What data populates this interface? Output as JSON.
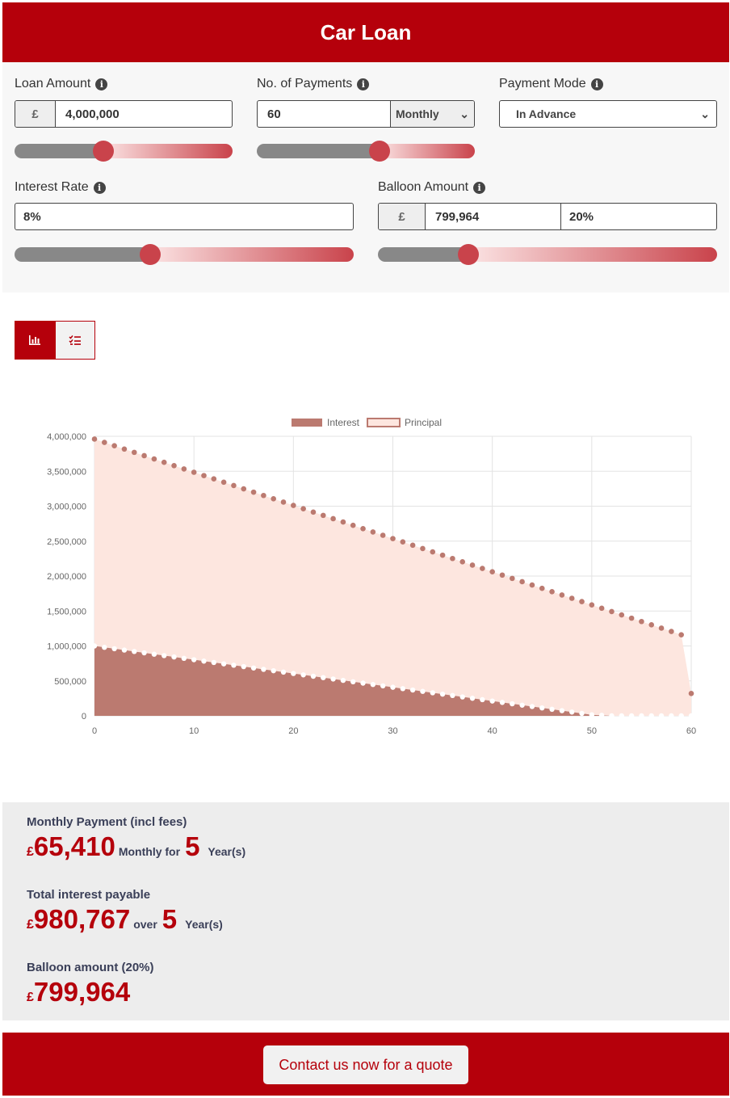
{
  "header": {
    "title": "Car Loan"
  },
  "form": {
    "loan_amount": {
      "label": "Loan Amount",
      "currency": "£",
      "value": "4,000,000",
      "slider_fraction": 0.41
    },
    "payments": {
      "label": "No. of Payments",
      "value": "60",
      "frequency": "Monthly",
      "slider_fraction": 0.56
    },
    "payment_mode": {
      "label": "Payment Mode",
      "value": "In Advance"
    },
    "interest_rate": {
      "label": "Interest Rate",
      "value": "8%",
      "slider_fraction": 0.4
    },
    "balloon": {
      "label": "Balloon Amount",
      "currency": "£",
      "value": "799,964",
      "percent": "20%",
      "slider_fraction": 0.27
    }
  },
  "view_toggle": {
    "chart_icon": "bar-chart-icon",
    "table_icon": "list-check-icon"
  },
  "chart_data": {
    "type": "line",
    "legend": [
      "Interest",
      "Principal"
    ],
    "legend_placement": "top",
    "x_ticks": [
      "0",
      "10",
      "20",
      "30",
      "40",
      "50",
      "60"
    ],
    "y_ticks": [
      "0",
      "500,000",
      "1,000,000",
      "1,500,000",
      "2,000,000",
      "2,500,000",
      "3,000,000",
      "3,500,000",
      "4,000,000"
    ],
    "xlim": [
      0,
      60
    ],
    "ylim": [
      0,
      4000000
    ],
    "grid": true,
    "series": [
      {
        "name": "Principal",
        "x": [
          0,
          59,
          60
        ],
        "y": [
          3960000,
          1160000,
          320000
        ]
      },
      {
        "name": "Interest",
        "x": [
          0,
          50,
          52,
          60
        ],
        "y": [
          1000000,
          15000,
          0,
          0
        ]
      }
    ]
  },
  "results": {
    "monthly_label": "Monthly Payment (incl fees)",
    "monthly_currency": "£",
    "monthly_value": "65,410",
    "monthly_for": "Monthly for",
    "monthly_years": "5",
    "monthly_years_unit": "Year(s)",
    "interest_label": "Total interest payable",
    "interest_currency": "£",
    "interest_value": "980,767",
    "interest_over": "over",
    "interest_years": "5",
    "interest_years_unit": "Year(s)",
    "balloon_label": "Balloon amount (20%)",
    "balloon_currency": "£",
    "balloon_value": "799,964"
  },
  "footer": {
    "cta_label": "Contact us now for a quote"
  },
  "colors": {
    "brand": "#b5000b",
    "interest": "#bb7a70",
    "principal": "#fde6df",
    "knob": "#c9434b"
  }
}
